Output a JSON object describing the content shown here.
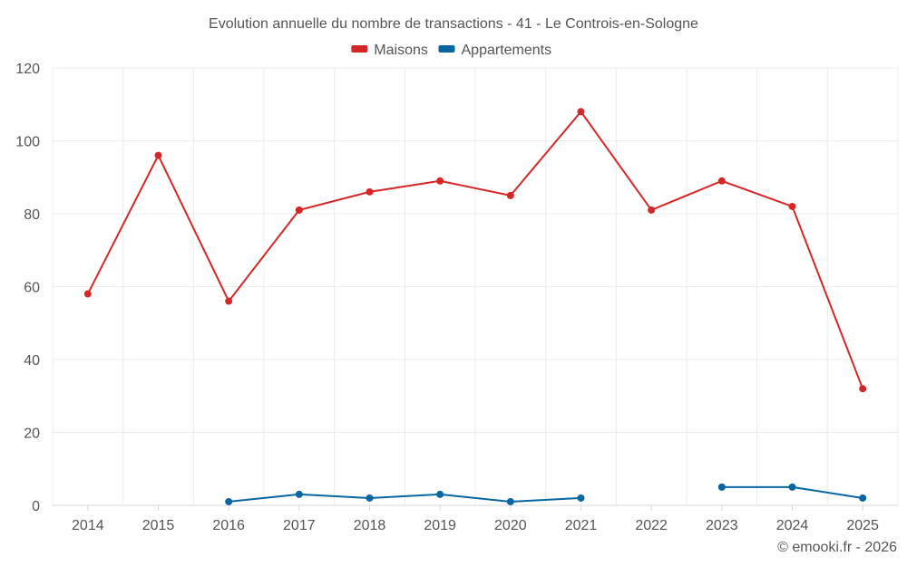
{
  "chart_data": {
    "type": "line",
    "title": "Evolution annuelle du nombre de transactions - 41 - Le Controis-en-Sologne",
    "xlabel": "",
    "ylabel": "",
    "categories": [
      "2014",
      "2015",
      "2016",
      "2017",
      "2018",
      "2019",
      "2020",
      "2021",
      "2022",
      "2023",
      "2024",
      "2025"
    ],
    "ylim": [
      0,
      120
    ],
    "yticks": [
      0,
      20,
      40,
      60,
      80,
      100,
      120
    ],
    "grid": true,
    "legend_position": "top-center",
    "series": [
      {
        "name": "Maisons",
        "color": "#d62728",
        "values": [
          58,
          96,
          56,
          81,
          86,
          89,
          85,
          108,
          81,
          89,
          82,
          32
        ]
      },
      {
        "name": "Appartements",
        "color": "#0a66a0",
        "values": [
          null,
          null,
          1,
          3,
          2,
          3,
          1,
          2,
          null,
          5,
          5,
          2
        ]
      }
    ]
  },
  "credit": "© emooki.fr - 2026"
}
